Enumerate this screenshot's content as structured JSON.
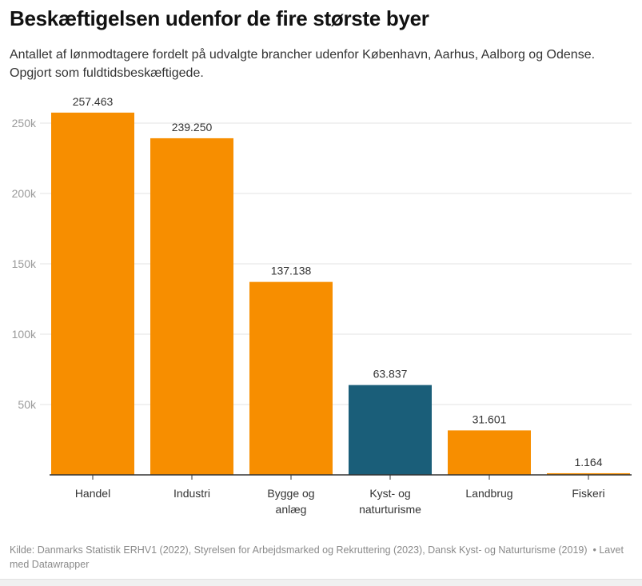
{
  "title": "Beskæftigelsen udenfor de fire største byer",
  "subtitle": "Antallet af lønmodtagere fordelt på udvalgte brancher udenfor København, Aarhus, Aalborg og Odense. Opgjort som fuldtidsbeskæftigede.",
  "source": "Kilde: Danmarks Statistik ERHV1 (2022), Styrelsen for Arbejdsmarked og Rekruttering (2023), Dansk Kyst- og Naturturisme (2019)",
  "credit": "Lavet med Datawrapper",
  "colors": {
    "default": "#f78e00",
    "highlight": "#1a5e79"
  },
  "chart_data": {
    "type": "bar",
    "title": "Beskæftigelsen udenfor de fire største byer",
    "xlabel": "",
    "ylabel": "",
    "ylim": [
      0,
      260000
    ],
    "grid": true,
    "categories": [
      [
        "Handel"
      ],
      [
        "Industri"
      ],
      [
        "Bygge og",
        "anlæg"
      ],
      [
        "Kyst- og",
        "naturturisme"
      ],
      [
        "Landbrug"
      ],
      [
        "Fiskeri"
      ]
    ],
    "values": [
      257463,
      239250,
      137138,
      63837,
      31601,
      1164
    ],
    "value_labels": [
      "257.463",
      "239.250",
      "137.138",
      "63.837",
      "31.601",
      "1.164"
    ],
    "highlight_index": 3,
    "yticks": [
      50000,
      100000,
      150000,
      200000,
      250000
    ],
    "ytick_labels": [
      "50k",
      "100k",
      "150k",
      "200k",
      "250k"
    ]
  }
}
